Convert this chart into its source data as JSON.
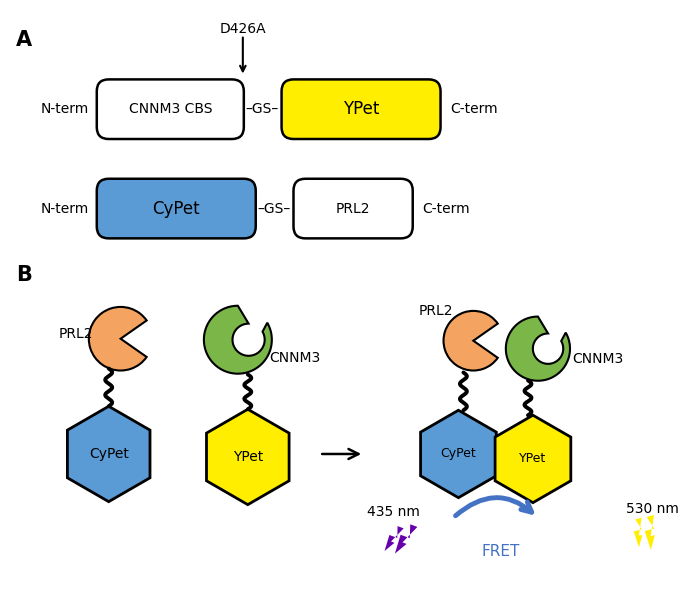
{
  "fig_width": 6.85,
  "fig_height": 5.91,
  "dpi": 100,
  "bg_color": "#ffffff",
  "yellow_color": "#FFEE00",
  "blue_color": "#5B9BD5",
  "green_color": "#7AB648",
  "peach_color": "#F4A460",
  "purple_color": "#6600AA",
  "fret_arrow_color": "#4472C4",
  "label_A": "A",
  "label_B": "B",
  "nterm": "N-term",
  "cterm": "C-term",
  "cnnm3_cbs": "CNNM3 CBS",
  "ypet": "YPet",
  "cypet": "CyPet",
  "prl2": "PRL2",
  "cnnm3": "CNNM3",
  "d426a": "D426A",
  "gs": "GS",
  "nm435": "435 nm",
  "nm530": "530 nm",
  "fret": "FRET"
}
